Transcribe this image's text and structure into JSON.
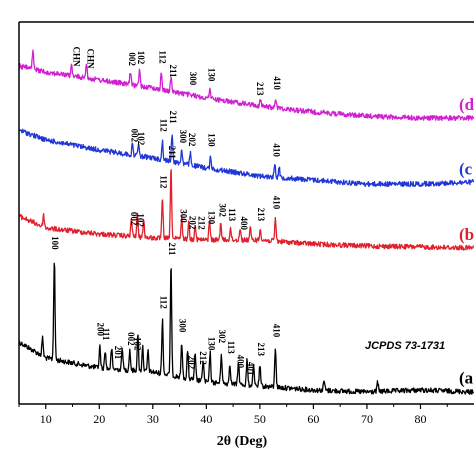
{
  "chart_data": {
    "type": "line",
    "title": "",
    "xlabel": "2θ (Deg)",
    "ylabel": "",
    "xlim": [
      5,
      90
    ],
    "x_ticks": [
      10,
      20,
      30,
      40,
      50,
      60,
      70,
      80
    ],
    "grid": false,
    "annotation": "JCPDS 73-1731",
    "colors": {
      "a": "#000000",
      "b": "#e0202c",
      "c": "#2036d8",
      "d": "#d020d0"
    },
    "series": [
      {
        "name": "(a",
        "color": "#000000",
        "baseline": [
          [
            5,
            342
          ],
          [
            10,
            358
          ],
          [
            20,
            368
          ],
          [
            30,
            372
          ],
          [
            40,
            382
          ],
          [
            50,
            386
          ],
          [
            60,
            390
          ],
          [
            70,
            392
          ],
          [
            80,
            390
          ],
          [
            90,
            392
          ]
        ],
        "peaks": [
          [
            9.4,
            18
          ],
          [
            11.6,
            100
          ],
          [
            20.1,
            22
          ],
          [
            21.1,
            18
          ],
          [
            22.3,
            20
          ],
          [
            24.3,
            22
          ],
          [
            25.7,
            20
          ],
          [
            27.2,
            35
          ],
          [
            28.1,
            25
          ],
          [
            29.1,
            20
          ],
          [
            31.8,
            55
          ],
          [
            33.4,
            110
          ],
          [
            35.4,
            35
          ],
          [
            36.5,
            28
          ],
          [
            37.9,
            25
          ],
          [
            39.4,
            22
          ],
          [
            40.7,
            30
          ],
          [
            42.8,
            30
          ],
          [
            44.4,
            20
          ],
          [
            46.0,
            22
          ],
          [
            47.6,
            25
          ],
          [
            48.8,
            20
          ],
          [
            50.0,
            20
          ],
          [
            52.9,
            40
          ],
          [
            62.0,
            10
          ],
          [
            72.0,
            9
          ]
        ],
        "labels": [
          {
            "x": 11.6,
            "text": "100"
          },
          {
            "x": 20.1,
            "text": "200"
          },
          {
            "x": 21.1,
            "text": "111"
          },
          {
            "x": 23.3,
            "text": "201"
          },
          {
            "x": 25.8,
            "text": "002"
          },
          {
            "x": 27.0,
            "text": "102"
          },
          {
            "x": 31.8,
            "text": "112"
          },
          {
            "x": 33.4,
            "text": "211"
          },
          {
            "x": 35.4,
            "text": "300"
          },
          {
            "x": 37.1,
            "text": "202"
          },
          {
            "x": 39.2,
            "text": "212"
          },
          {
            "x": 40.8,
            "text": "130"
          },
          {
            "x": 42.8,
            "text": "302"
          },
          {
            "x": 44.4,
            "text": "113"
          },
          {
            "x": 46.2,
            "text": "400"
          },
          {
            "x": 48.2,
            "text": "401"
          },
          {
            "x": 50.0,
            "text": "213"
          },
          {
            "x": 52.9,
            "text": "410"
          }
        ]
      },
      {
        "name": "(b",
        "color": "#e0202c",
        "baseline": [
          [
            5,
            216
          ],
          [
            10,
            228
          ],
          [
            20,
            234
          ],
          [
            30,
            238
          ],
          [
            40,
            240
          ],
          [
            50,
            240
          ],
          [
            60,
            244
          ],
          [
            70,
            246
          ],
          [
            80,
            247
          ],
          [
            90,
            248
          ]
        ],
        "peaks": [
          [
            9.6,
            12
          ],
          [
            26.0,
            18
          ],
          [
            27.1,
            22
          ],
          [
            28.3,
            18
          ],
          [
            31.8,
            40
          ],
          [
            33.4,
            70
          ],
          [
            35.4,
            22
          ],
          [
            36.7,
            18
          ],
          [
            37.9,
            16
          ],
          [
            40.6,
            20
          ],
          [
            42.7,
            18
          ],
          [
            44.5,
            12
          ],
          [
            46.3,
            12
          ],
          [
            48.2,
            12
          ],
          [
            50.1,
            12
          ],
          [
            52.9,
            22
          ]
        ],
        "labels": [
          {
            "x": 26.3,
            "text": "002"
          },
          {
            "x": 27.5,
            "text": "102"
          },
          {
            "x": 31.8,
            "text": "112"
          },
          {
            "x": 33.4,
            "text": "211"
          },
          {
            "x": 35.6,
            "text": "300"
          },
          {
            "x": 37.2,
            "text": "202"
          },
          {
            "x": 38.9,
            "text": "212"
          },
          {
            "x": 40.8,
            "text": "130"
          },
          {
            "x": 42.8,
            "text": "302"
          },
          {
            "x": 44.6,
            "text": "113"
          },
          {
            "x": 46.8,
            "text": "400"
          },
          {
            "x": 50.0,
            "text": "213"
          },
          {
            "x": 52.9,
            "text": "410"
          }
        ]
      },
      {
        "name": "(c",
        "color": "#2036d8",
        "baseline": [
          [
            5,
            130
          ],
          [
            10,
            140
          ],
          [
            20,
            150
          ],
          [
            30,
            158
          ],
          [
            40,
            168
          ],
          [
            50,
            176
          ],
          [
            60,
            180
          ],
          [
            70,
            184
          ],
          [
            80,
            184
          ],
          [
            90,
            182
          ]
        ],
        "peaks": [
          [
            26.2,
            10
          ],
          [
            27.3,
            12
          ],
          [
            31.8,
            18
          ],
          [
            33.6,
            28
          ],
          [
            35.4,
            14
          ],
          [
            37.0,
            12
          ],
          [
            40.8,
            12
          ],
          [
            52.8,
            14
          ],
          [
            53.6,
            10
          ]
        ],
        "labels": [
          {
            "x": 26.4,
            "text": "002"
          },
          {
            "x": 27.6,
            "text": "102"
          },
          {
            "x": 31.8,
            "text": "112"
          },
          {
            "x": 33.6,
            "text": "211"
          },
          {
            "x": 35.5,
            "text": "300"
          },
          {
            "x": 37.1,
            "text": "202"
          },
          {
            "x": 40.8,
            "text": "130"
          },
          {
            "x": 52.9,
            "text": "410"
          }
        ]
      },
      {
        "name": "(d",
        "color": "#d020d0",
        "baseline": [
          [
            5,
            66
          ],
          [
            10,
            72
          ],
          [
            20,
            80
          ],
          [
            30,
            88
          ],
          [
            40,
            98
          ],
          [
            50,
            106
          ],
          [
            60,
            112
          ],
          [
            70,
            116
          ],
          [
            80,
            118
          ],
          [
            90,
            118
          ]
        ],
        "peaks": [
          [
            7.6,
            18
          ],
          [
            14.8,
            10
          ],
          [
            17.6,
            16
          ],
          [
            25.8,
            12
          ],
          [
            27.5,
            16
          ],
          [
            31.6,
            16
          ],
          [
            33.4,
            14
          ],
          [
            40.7,
            10
          ],
          [
            50.1,
            6
          ],
          [
            53.0,
            8
          ]
        ],
        "labels": [
          {
            "x": 15.6,
            "text": "CHN"
          },
          {
            "x": 18.2,
            "text": "CHN"
          },
          {
            "x": 25.9,
            "text": "002"
          },
          {
            "x": 27.6,
            "text": "102"
          },
          {
            "x": 31.6,
            "text": "112"
          },
          {
            "x": 33.6,
            "text": "211"
          },
          {
            "x": 37.3,
            "text": "300"
          },
          {
            "x": 40.8,
            "text": "130"
          },
          {
            "x": 49.8,
            "text": "213"
          },
          {
            "x": 53.0,
            "text": "410"
          }
        ]
      }
    ]
  }
}
